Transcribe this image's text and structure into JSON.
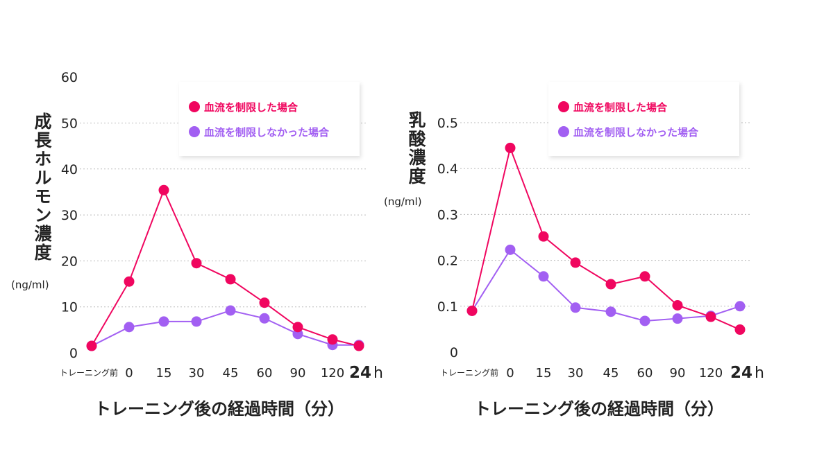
{
  "chart_data": [
    {
      "type": "line",
      "ylabel": "成長ホルモン濃度",
      "yunit": "(ng/ml)",
      "xlabel": "トレーニング後の経過時間（分）",
      "categories": [
        "トレーニング前",
        "0",
        "15",
        "30",
        "45",
        "60",
        "90",
        "120",
        "24"
      ],
      "last_category_suffix": "h",
      "ylim": [
        0,
        60
      ],
      "yticks": [
        "0",
        "10",
        "20",
        "30",
        "40",
        "50",
        "60"
      ],
      "ytick_values": [
        0,
        10,
        20,
        30,
        40,
        50,
        60
      ],
      "grid": true,
      "legend_position": "top-right",
      "series": [
        {
          "name": "血流を制限した場合",
          "color": "#f0065f",
          "values": [
            1.5,
            15.5,
            35.4,
            19.5,
            16.0,
            10.9,
            5.6,
            2.9,
            1.5
          ]
        },
        {
          "name": "血流を制限しなかった場合",
          "color": "#a25ff2",
          "values": [
            1.5,
            5.6,
            6.8,
            6.8,
            9.2,
            7.5,
            4.1,
            1.7,
            1.7
          ]
        }
      ]
    },
    {
      "type": "line",
      "ylabel": "乳酸濃度",
      "yunit": "(ng/ml)",
      "xlabel": "トレーニング後の経過時間（分）",
      "categories": [
        "トレーニング前",
        "0",
        "15",
        "30",
        "45",
        "60",
        "90",
        "120",
        "24"
      ],
      "last_category_suffix": "h",
      "ylim": [
        0,
        0.5
      ],
      "yticks": [
        "0",
        "0.1",
        "0.2",
        "0.3",
        "0.4",
        "0.5"
      ],
      "ytick_values": [
        0,
        0.1,
        0.2,
        0.3,
        0.4,
        0.5
      ],
      "grid": true,
      "legend_position": "top-right",
      "series": [
        {
          "name": "血流を制限した場合",
          "color": "#f0065f",
          "values": [
            0.09,
            0.445,
            0.252,
            0.195,
            0.148,
            0.165,
            0.102,
            0.077,
            0.049
          ]
        },
        {
          "name": "血流を制限しなかった場合",
          "color": "#a25ff2",
          "values": [
            0.09,
            0.223,
            0.165,
            0.097,
            0.088,
            0.068,
            0.073,
            0.079,
            0.1
          ]
        }
      ]
    }
  ]
}
